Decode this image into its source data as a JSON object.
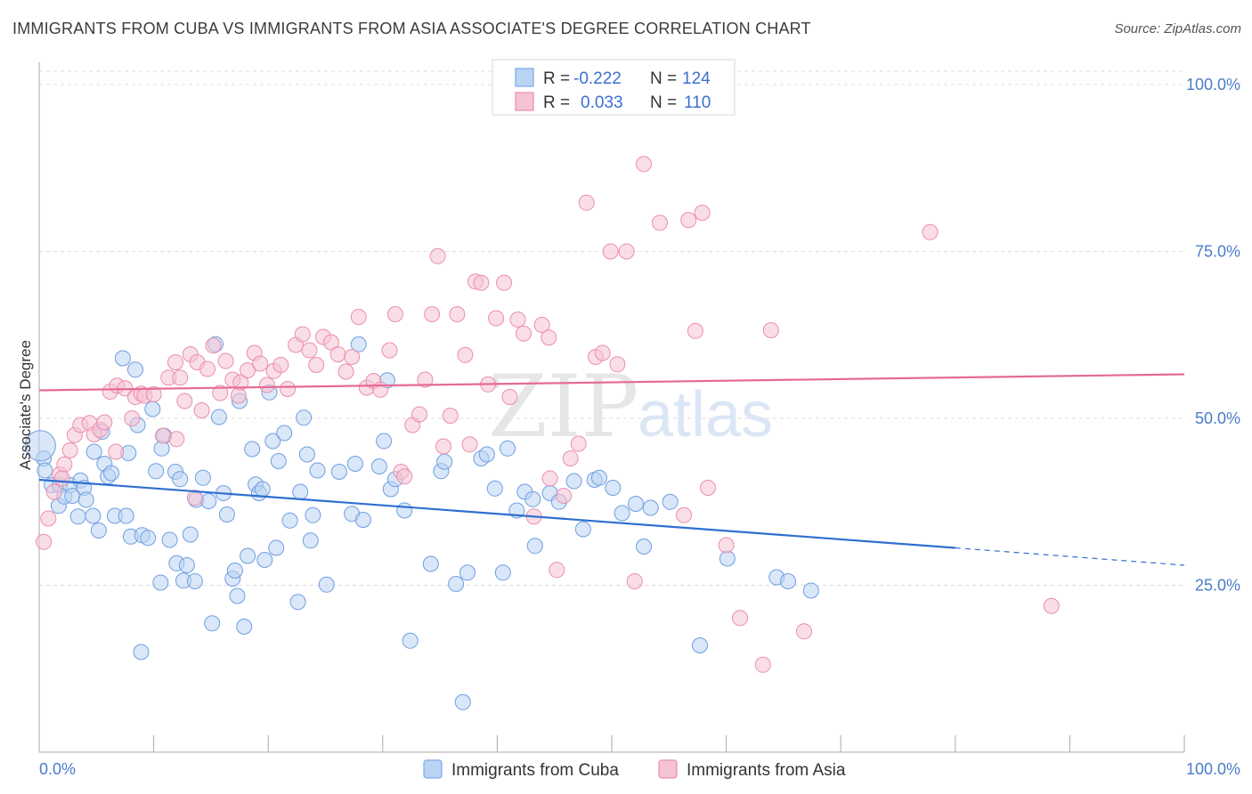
{
  "title": "IMMIGRANTS FROM CUBA VS IMMIGRANTS FROM ASIA ASSOCIATE'S DEGREE CORRELATION CHART",
  "source": "Source: ZipAtlas.com",
  "watermark": {
    "zip": "ZIP",
    "atlas": "atlas"
  },
  "legend": {
    "rows": [
      {
        "r_label": "R =",
        "r_value": "-0.222",
        "n_label": "N =",
        "n_value": "124",
        "color": "#7aaae8",
        "fill": "#b9d3f3"
      },
      {
        "r_label": "R =",
        "r_value": "0.033",
        "n_label": "N =",
        "n_value": "110",
        "color": "#ea8eae",
        "fill": "#f6c3d3"
      }
    ]
  },
  "bottom_legend": [
    {
      "label": "Immigrants from Cuba",
      "color": "#7aaae8",
      "fill": "#b9d3f3"
    },
    {
      "label": "Immigrants from Asia",
      "color": "#ea8eae",
      "fill": "#f6c3d3"
    }
  ],
  "chart_data": {
    "type": "scatter",
    "title": "IMMIGRANTS FROM CUBA VS IMMIGRANTS FROM ASIA ASSOCIATE'S DEGREE CORRELATION CHART",
    "xlabel": "",
    "ylabel": "Associate's Degree",
    "xlim": [
      0,
      100
    ],
    "ylim": [
      0,
      102
    ],
    "x_tick_labels": [
      "0.0%",
      "100.0%"
    ],
    "y_ticks": [
      25,
      50,
      75,
      100
    ],
    "y_tick_labels": [
      "25.0%",
      "50.0%",
      "75.0%",
      "100.0%"
    ],
    "grid": true,
    "legend_position": "top-center",
    "series": [
      {
        "name": "Immigrants from Cuba",
        "color": "#6f9fe2",
        "trend": {
          "x": [
            0,
            80
          ],
          "y": [
            40.8,
            30.6
          ],
          "dashed_to": [
            100,
            28.0
          ]
        },
        "points": [
          [
            0.4,
            44
          ],
          [
            0.5,
            42.2
          ],
          [
            1.1,
            40
          ],
          [
            1.7,
            36.9
          ],
          [
            1.8,
            40
          ],
          [
            2.2,
            38.3
          ],
          [
            2.7,
            40
          ],
          [
            2.9,
            38.4
          ],
          [
            3.4,
            35.3
          ],
          [
            3.6,
            40.7
          ],
          [
            3.9,
            39.6
          ],
          [
            4.1,
            37.8
          ],
          [
            4.7,
            35.4
          ],
          [
            4.8,
            45
          ],
          [
            5.2,
            33.2
          ],
          [
            5.5,
            48
          ],
          [
            5.7,
            43.2
          ],
          [
            6.0,
            41.3
          ],
          [
            6.3,
            41.8
          ],
          [
            6.6,
            35.4
          ],
          [
            7.3,
            59
          ],
          [
            7.6,
            35.4
          ],
          [
            7.8,
            44.8
          ],
          [
            8.0,
            32.3
          ],
          [
            8.4,
            57.3
          ],
          [
            8.6,
            49
          ],
          [
            8.9,
            15
          ],
          [
            9.0,
            32.5
          ],
          [
            9.5,
            32.1
          ],
          [
            9.9,
            51.4
          ],
          [
            10.2,
            42.1
          ],
          [
            10.6,
            25.4
          ],
          [
            10.7,
            45.5
          ],
          [
            10.9,
            47.4
          ],
          [
            11.4,
            31.8
          ],
          [
            11.9,
            42
          ],
          [
            12.0,
            28.3
          ],
          [
            12.3,
            40.9
          ],
          [
            12.6,
            25.7
          ],
          [
            12.9,
            28
          ],
          [
            13.2,
            32.6
          ],
          [
            13.6,
            25.6
          ],
          [
            13.7,
            37.8
          ],
          [
            14.3,
            41.1
          ],
          [
            14.8,
            37.6
          ],
          [
            15.1,
            19.3
          ],
          [
            15.4,
            61.1
          ],
          [
            15.7,
            50.2
          ],
          [
            16.1,
            38.8
          ],
          [
            16.4,
            35.6
          ],
          [
            16.9,
            26
          ],
          [
            17.1,
            27.2
          ],
          [
            17.3,
            23.4
          ],
          [
            17.5,
            52.6
          ],
          [
            17.9,
            18.8
          ],
          [
            18.2,
            29.4
          ],
          [
            18.6,
            45.4
          ],
          [
            18.9,
            40.1
          ],
          [
            19.2,
            38.8
          ],
          [
            19.5,
            39.4
          ],
          [
            19.7,
            28.8
          ],
          [
            20.1,
            53.9
          ],
          [
            20.4,
            46.6
          ],
          [
            20.7,
            30.6
          ],
          [
            20.9,
            43.6
          ],
          [
            21.4,
            47.8
          ],
          [
            21.9,
            34.7
          ],
          [
            22.6,
            22.5
          ],
          [
            22.8,
            39
          ],
          [
            23.1,
            50.1
          ],
          [
            23.4,
            44.6
          ],
          [
            23.7,
            31.7
          ],
          [
            23.9,
            35.5
          ],
          [
            24.3,
            42.2
          ],
          [
            25.1,
            25.1
          ],
          [
            26.2,
            42
          ],
          [
            27.3,
            35.7
          ],
          [
            27.6,
            43.2
          ],
          [
            27.9,
            61.1
          ],
          [
            28.3,
            34.8
          ],
          [
            29.7,
            42.8
          ],
          [
            30.1,
            46.6
          ],
          [
            30.4,
            55.7
          ],
          [
            30.7,
            39.4
          ],
          [
            31.1,
            40.9
          ],
          [
            31.9,
            36.2
          ],
          [
            32.4,
            16.7
          ],
          [
            34.2,
            28.2
          ],
          [
            35.1,
            42.1
          ],
          [
            35.4,
            43.5
          ],
          [
            36.4,
            25.2
          ],
          [
            37.0,
            7.5
          ],
          [
            37.4,
            26.9
          ],
          [
            38.6,
            44
          ],
          [
            39.1,
            44.6
          ],
          [
            39.8,
            39.5
          ],
          [
            40.5,
            26.9
          ],
          [
            40.9,
            45.5
          ],
          [
            41.7,
            36.2
          ],
          [
            42.4,
            39
          ],
          [
            43.1,
            37.9
          ],
          [
            43.3,
            30.9
          ],
          [
            44.6,
            38.8
          ],
          [
            45.4,
            37.5
          ],
          [
            46.7,
            40.6
          ],
          [
            47.5,
            33.4
          ],
          [
            48.5,
            40.8
          ],
          [
            48.9,
            41.1
          ],
          [
            50.1,
            39.6
          ],
          [
            50.9,
            35.8
          ],
          [
            52.1,
            37.2
          ],
          [
            52.8,
            30.8
          ],
          [
            53.4,
            36.6
          ],
          [
            55.1,
            37.5
          ],
          [
            57.7,
            16
          ],
          [
            60.1,
            29.0
          ],
          [
            64.4,
            26.2
          ],
          [
            65.4,
            25.6
          ],
          [
            67.4,
            24.2
          ],
          [
            0.1,
            45.9
          ]
        ]
      },
      {
        "name": "Immigrants from Asia",
        "color": "#ea8eae",
        "trend": {
          "x": [
            0,
            100
          ],
          "y": [
            54.2,
            56.6
          ]
        },
        "points": [
          [
            0.4,
            31.5
          ],
          [
            0.8,
            35
          ],
          [
            1.3,
            39
          ],
          [
            1.8,
            41.6
          ],
          [
            2.2,
            43.1
          ],
          [
            2.7,
            45.2
          ],
          [
            3.1,
            47.5
          ],
          [
            3.6,
            49
          ],
          [
            4.4,
            49.3
          ],
          [
            4.8,
            47.6
          ],
          [
            5.3,
            48.3
          ],
          [
            5.7,
            49.4
          ],
          [
            6.2,
            54
          ],
          [
            6.8,
            54.9
          ],
          [
            7.5,
            54.5
          ],
          [
            8.1,
            50
          ],
          [
            8.4,
            53.2
          ],
          [
            8.9,
            53.7
          ],
          [
            9.2,
            53.4
          ],
          [
            10.0,
            53.6
          ],
          [
            10.8,
            47.4
          ],
          [
            11.3,
            56.1
          ],
          [
            11.9,
            58.4
          ],
          [
            12.3,
            56.1
          ],
          [
            12.7,
            52.6
          ],
          [
            13.2,
            59.6
          ],
          [
            13.8,
            58.4
          ],
          [
            14.2,
            51.2
          ],
          [
            14.7,
            57.4
          ],
          [
            15.2,
            60.9
          ],
          [
            15.8,
            53.8
          ],
          [
            16.3,
            58.6
          ],
          [
            16.9,
            55.8
          ],
          [
            17.4,
            53.4
          ],
          [
            17.6,
            55.4
          ],
          [
            18.2,
            57.2
          ],
          [
            18.8,
            59.8
          ],
          [
            19.3,
            58.2
          ],
          [
            19.9,
            55
          ],
          [
            20.5,
            57.1
          ],
          [
            21.1,
            58
          ],
          [
            21.7,
            54.4
          ],
          [
            22.4,
            61
          ],
          [
            23.0,
            62.6
          ],
          [
            23.6,
            60.2
          ],
          [
            24.2,
            58
          ],
          [
            24.8,
            62.2
          ],
          [
            25.5,
            61.4
          ],
          [
            26.1,
            59.6
          ],
          [
            26.8,
            57
          ],
          [
            27.3,
            59.2
          ],
          [
            27.9,
            65.2
          ],
          [
            28.6,
            54.6
          ],
          [
            29.2,
            55.6
          ],
          [
            29.8,
            54.3
          ],
          [
            30.6,
            60.2
          ],
          [
            31.1,
            65.6
          ],
          [
            31.6,
            42
          ],
          [
            31.9,
            41.3
          ],
          [
            32.6,
            49
          ],
          [
            33.2,
            50.6
          ],
          [
            33.7,
            55.8
          ],
          [
            34.3,
            65.6
          ],
          [
            34.8,
            74.3
          ],
          [
            35.3,
            45.8
          ],
          [
            35.9,
            50.4
          ],
          [
            36.5,
            65.6
          ],
          [
            37.2,
            59.5
          ],
          [
            37.6,
            46.1
          ],
          [
            38.1,
            70.5
          ],
          [
            38.6,
            70.3
          ],
          [
            39.2,
            55.1
          ],
          [
            39.9,
            65
          ],
          [
            40.6,
            70.3
          ],
          [
            41.1,
            53.2
          ],
          [
            41.8,
            64.8
          ],
          [
            42.3,
            62.7
          ],
          [
            43.2,
            35.3
          ],
          [
            43.9,
            64
          ],
          [
            44.5,
            62.1
          ],
          [
            45.2,
            27.3
          ],
          [
            45.8,
            38.4
          ],
          [
            46.4,
            44
          ],
          [
            47.1,
            46.2
          ],
          [
            47.8,
            82.3
          ],
          [
            48.6,
            59.2
          ],
          [
            49.2,
            59.8
          ],
          [
            49.9,
            75
          ],
          [
            50.5,
            58.1
          ],
          [
            51.3,
            75
          ],
          [
            52.0,
            25.6
          ],
          [
            52.8,
            88.1
          ],
          [
            54.2,
            79.3
          ],
          [
            56.3,
            35.5
          ],
          [
            56.7,
            79.7
          ],
          [
            57.3,
            63.1
          ],
          [
            57.9,
            80.8
          ],
          [
            58.4,
            39.6
          ],
          [
            60.0,
            31
          ],
          [
            61.2,
            20.1
          ],
          [
            63.2,
            13.1
          ],
          [
            63.9,
            63.2
          ],
          [
            66.8,
            18.1
          ],
          [
            77.8,
            77.9
          ],
          [
            88.4,
            21.9
          ],
          [
            2.0,
            41
          ],
          [
            6.7,
            45
          ],
          [
            12.0,
            46.9
          ],
          [
            13.6,
            38.1
          ],
          [
            44.6,
            41
          ]
        ]
      }
    ]
  }
}
